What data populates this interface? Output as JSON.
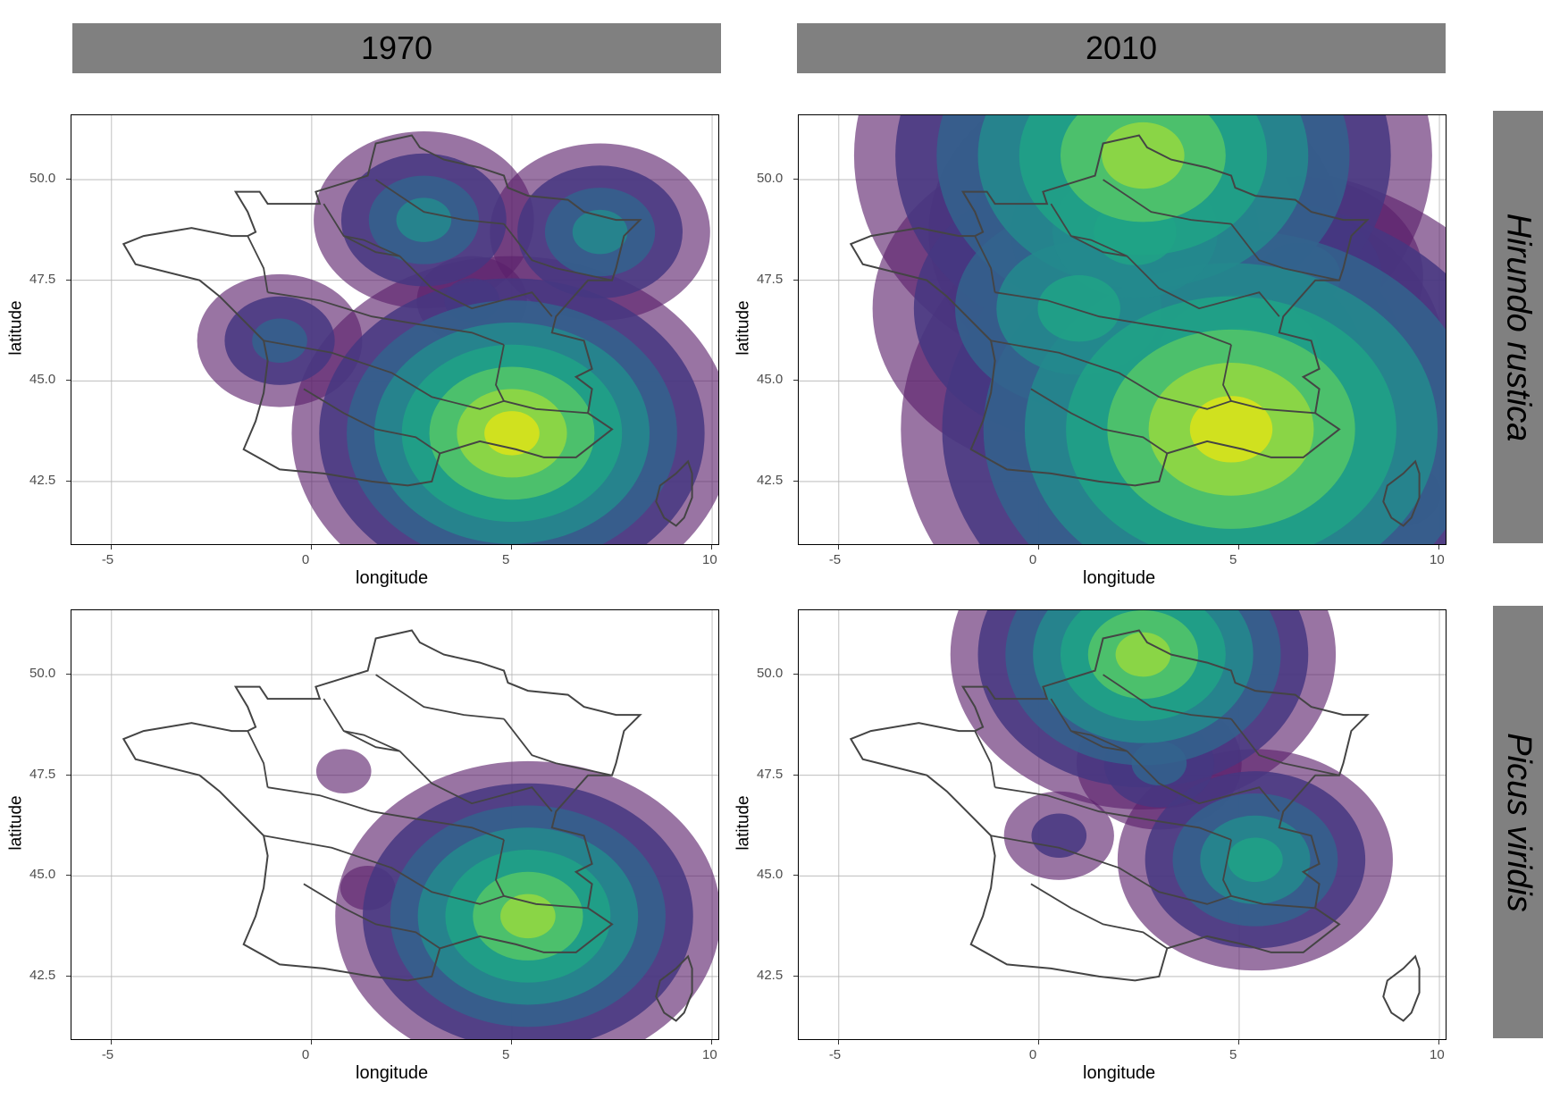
{
  "facets": {
    "columns": [
      "1970",
      "2010"
    ],
    "rows": [
      "Hirundo rustica",
      "Picus viridis"
    ]
  },
  "axes": {
    "xlabel": "longitude",
    "ylabel": "latitude",
    "xticks": [
      "-5",
      "0",
      "5",
      "10"
    ],
    "yticks": [
      "50.0",
      "47.5",
      "45.0",
      "42.5"
    ],
    "xlim": [
      -6,
      10.2
    ],
    "ylim": [
      40.9,
      51.6
    ],
    "grid": true
  },
  "colors": {
    "strip": "#808080",
    "grid": "#b3b3b3",
    "outline": "#444444",
    "palette": [
      "#5b1f6b",
      "#453781",
      "#33638d",
      "#238a8d",
      "#20a386",
      "#55c667",
      "#95d840",
      "#dce319"
    ]
  },
  "chart_data": [
    {
      "type": "density-contour-map",
      "species": "Hirundo rustica",
      "year": "1970",
      "hotspots": [
        {
          "lon": 5.0,
          "lat": 43.7,
          "level": 8
        },
        {
          "lon": 2.8,
          "lat": 49.0,
          "level": 4
        },
        {
          "lon": 7.2,
          "lat": 48.7,
          "level": 4
        },
        {
          "lon": -0.8,
          "lat": 46.0,
          "level": 3
        },
        {
          "lon": 4.0,
          "lat": 47.0,
          "level": 2
        }
      ]
    },
    {
      "type": "density-contour-map",
      "species": "Hirundo rustica",
      "year": "2010",
      "hotspots": [
        {
          "lon": 4.8,
          "lat": 43.8,
          "level": 8
        },
        {
          "lon": 2.6,
          "lat": 50.6,
          "level": 7
        },
        {
          "lon": 1.0,
          "lat": 46.8,
          "level": 5
        },
        {
          "lon": 2.4,
          "lat": 48.7,
          "level": 5
        },
        {
          "lon": 5.0,
          "lat": 45.5,
          "level": 5
        },
        {
          "lon": 6.5,
          "lat": 47.6,
          "level": 3
        },
        {
          "lon": 9.0,
          "lat": 42.2,
          "level": 1
        }
      ]
    },
    {
      "type": "density-contour-map",
      "species": "Picus viridis",
      "year": "1970",
      "hotspots": [
        {
          "lon": 5.4,
          "lat": 44.0,
          "level": 7
        },
        {
          "lon": 0.8,
          "lat": 47.6,
          "level": 1
        },
        {
          "lon": 1.4,
          "lat": 44.7,
          "level": 1
        }
      ]
    },
    {
      "type": "density-contour-map",
      "species": "Picus viridis",
      "year": "2010",
      "hotspots": [
        {
          "lon": 2.6,
          "lat": 50.5,
          "level": 7
        },
        {
          "lon": 5.4,
          "lat": 45.4,
          "level": 5
        },
        {
          "lon": 3.0,
          "lat": 47.8,
          "level": 3
        },
        {
          "lon": 0.5,
          "lat": 46.0,
          "level": 2
        }
      ]
    }
  ]
}
